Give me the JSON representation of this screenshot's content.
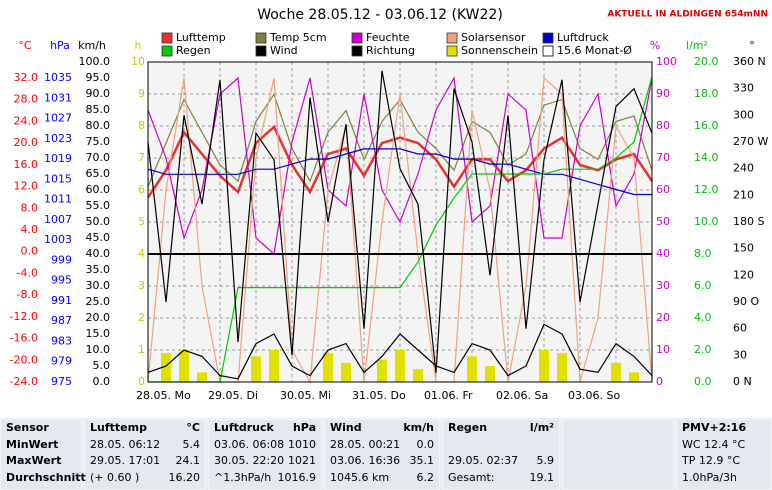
{
  "chart_data": {
    "type": "line",
    "title": "Woche 28.05.12 - 03.06.12 (KW22)",
    "station": "AKTUELL IN ALDINGEN 654mNN",
    "x": [
      0,
      6,
      12,
      18,
      24,
      30,
      36,
      42,
      48,
      54,
      60,
      66,
      72,
      78,
      84,
      90,
      96,
      102,
      108,
      114,
      120,
      126,
      132,
      138,
      144,
      150,
      156,
      162,
      168
    ],
    "xlim": [
      0,
      168
    ],
    "xticks": [
      {
        "value": 0,
        "label": "28.05. Mo"
      },
      {
        "value": 24,
        "label": "29.05. Di"
      },
      {
        "value": 48,
        "label": "30.05. Mi"
      },
      {
        "value": 72,
        "label": "31.05. Do"
      },
      {
        "value": 96,
        "label": "01.06. Fr"
      },
      {
        "value": 120,
        "label": "02.06. Sa"
      },
      {
        "value": 144,
        "label": "03.06. So"
      }
    ],
    "grid": true,
    "axes": [
      {
        "unit": "°C",
        "color": "#ff0000",
        "lim": [
          -24,
          32
        ],
        "ticks": [
          {
            "value": 32,
            "label": "32.0"
          },
          {
            "value": 28,
            "label": "28.0"
          },
          {
            "value": 24,
            "label": "24.0"
          },
          {
            "value": 20,
            "label": "20.0"
          },
          {
            "value": 16,
            "label": "16.0"
          },
          {
            "value": 12,
            "label": "12.0"
          },
          {
            "value": 8,
            "label": "8.0"
          },
          {
            "value": 4,
            "label": "4.0"
          },
          {
            "value": 0,
            "label": "0.0"
          },
          {
            "value": -4,
            "label": "-4.0"
          },
          {
            "value": -8,
            "label": "-8.0"
          },
          {
            "value": -12,
            "label": "-12.0"
          },
          {
            "value": -16,
            "label": "-16.0"
          },
          {
            "value": -20,
            "label": "-20.0"
          },
          {
            "value": -24,
            "label": "-24.0"
          }
        ]
      },
      {
        "unit": "hPa",
        "color": "#0000ff",
        "lim": [
          975,
          1035
        ],
        "ticks": [
          1035,
          1031,
          1027,
          1023,
          1019,
          1015,
          1011,
          1007,
          1003,
          999,
          995,
          991,
          987,
          983,
          979,
          975
        ]
      },
      {
        "unit": "km/h",
        "color": "#000000",
        "lim": [
          0,
          100
        ],
        "ticks": [
          {
            "value": 100,
            "label": "100.0"
          },
          {
            "value": 95,
            "label": "95.0"
          },
          {
            "value": 90,
            "label": "90.0"
          },
          {
            "value": 85,
            "label": "85.0"
          },
          {
            "value": 80,
            "label": "80.0"
          },
          {
            "value": 75,
            "label": "75.0"
          },
          {
            "value": 70,
            "label": "70.0"
          },
          {
            "value": 65,
            "label": "65.0"
          },
          {
            "value": 60,
            "label": "60.0"
          },
          {
            "value": 55,
            "label": "55.0"
          },
          {
            "value": 50,
            "label": "50.0"
          },
          {
            "value": 45,
            "label": "45.0"
          },
          {
            "value": 40,
            "label": "40.0"
          },
          {
            "value": 35,
            "label": "35.0"
          },
          {
            "value": 30,
            "label": "30.0"
          },
          {
            "value": 25,
            "label": "25.0"
          },
          {
            "value": 20,
            "label": "20.0"
          },
          {
            "value": 15,
            "label": "15.0"
          },
          {
            "value": 10,
            "label": "10.0"
          },
          {
            "value": 5,
            "label": "5.0"
          },
          {
            "value": 0,
            "label": "0.0"
          }
        ]
      },
      {
        "unit": "h",
        "color": "#c8c800",
        "lim": [
          0,
          10
        ],
        "ticks": [
          10,
          9,
          8,
          7,
          6,
          5,
          4,
          3,
          2,
          1,
          0
        ]
      },
      {
        "unit": "%",
        "color": "#cc00cc",
        "lim": [
          0,
          100
        ],
        "ticks": [
          100,
          90,
          80,
          70,
          60,
          50,
          40,
          30,
          20,
          10,
          0
        ]
      },
      {
        "unit": "l/m²",
        "color": "#00c000",
        "lim": [
          0,
          20
        ],
        "ticks": [
          {
            "value": 20,
            "label": "20.0"
          },
          {
            "value": 18,
            "label": "18.0"
          },
          {
            "value": 16,
            "label": "16.0"
          },
          {
            "value": 14,
            "label": "14.0"
          },
          {
            "value": 12,
            "label": "12.0"
          },
          {
            "value": 10,
            "label": "10.0"
          },
          {
            "value": 8,
            "label": "8.0"
          },
          {
            "value": 6,
            "label": "6.0"
          },
          {
            "value": 4,
            "label": "4.0"
          },
          {
            "value": 2,
            "label": "2.0"
          },
          {
            "value": 0,
            "label": "0.0"
          }
        ]
      },
      {
        "unit": "°",
        "color": "#000000",
        "lim": [
          0,
          360
        ],
        "ticks": [
          {
            "value": 360,
            "label": "360 N"
          },
          330,
          300,
          {
            "value": 270,
            "label": "270 W"
          },
          240,
          210,
          {
            "value": 180,
            "label": "180 S"
          },
          150,
          120,
          {
            "value": 90,
            "label": "90 O"
          },
          60,
          30,
          {
            "value": 0,
            "label": "0 N"
          }
        ]
      }
    ],
    "series": [
      {
        "name": "Lufttemp",
        "color": "#e8302c",
        "axis": 0,
        "values": [
          10,
          15,
          22,
          18,
          14,
          11,
          20,
          23,
          16,
          11,
          18,
          19,
          14,
          20,
          21,
          20,
          17,
          12,
          17,
          17,
          13,
          15,
          19,
          21,
          16,
          15,
          17,
          18,
          13
        ]
      },
      {
        "name": "Temp 5cm",
        "color": "#808040",
        "axis": 0,
        "values": [
          12,
          20,
          28,
          22,
          16,
          13,
          24,
          29,
          19,
          13,
          22,
          26,
          17,
          24,
          28,
          22,
          19,
          15,
          24,
          22,
          16,
          18,
          27,
          28,
          19,
          17,
          24,
          25,
          15
        ]
      },
      {
        "name": "Feuchte",
        "color": "#cc00cc",
        "axis": 4,
        "values": [
          85,
          70,
          45,
          60,
          90,
          95,
          45,
          40,
          75,
          95,
          60,
          55,
          90,
          60,
          50,
          65,
          85,
          95,
          50,
          55,
          90,
          85,
          45,
          45,
          80,
          90,
          55,
          65,
          95
        ]
      },
      {
        "name": "Solarsensor",
        "color": "#f4a080",
        "axis": 2,
        "values": [
          0,
          60,
          95,
          30,
          0,
          0,
          70,
          95,
          10,
          0,
          60,
          80,
          0,
          50,
          90,
          40,
          0,
          0,
          85,
          60,
          0,
          30,
          95,
          90,
          0,
          20,
          80,
          70,
          0
        ]
      },
      {
        "name": "Luftdruck",
        "color": "#0000cc",
        "axis": 1,
        "values": [
          1017,
          1016,
          1016,
          1016,
          1016,
          1016,
          1017,
          1017,
          1018,
          1019,
          1019,
          1020,
          1021,
          1021,
          1021,
          1020,
          1020,
          1019,
          1019,
          1018,
          1018,
          1017,
          1016,
          1016,
          1015,
          1014,
          1013,
          1012,
          1012
        ]
      },
      {
        "name": "Regen",
        "color": "#00cc00",
        "axis": 5,
        "values": [
          0,
          0,
          0,
          0,
          0,
          5.9,
          5.9,
          5.9,
          5.9,
          5.9,
          5.9,
          5.9,
          5.9,
          5.9,
          5.9,
          7.5,
          9.8,
          11.5,
          13,
          13,
          13,
          13,
          13,
          13.3,
          13.3,
          13.3,
          14,
          15,
          19.1
        ]
      },
      {
        "name": "Wind",
        "color": "#000000",
        "axis": 2,
        "values": [
          3,
          5,
          10,
          8,
          2,
          1,
          12,
          15,
          5,
          2,
          10,
          12,
          3,
          8,
          15,
          10,
          5,
          3,
          12,
          10,
          2,
          5,
          18,
          15,
          4,
          3,
          12,
          8,
          2
        ]
      },
      {
        "name": "Richtung",
        "color": "#000000",
        "axis": 6,
        "values": [
          270,
          90,
          300,
          200,
          340,
          45,
          280,
          250,
          30,
          320,
          180,
          290,
          60,
          350,
          240,
          200,
          10,
          330,
          270,
          120,
          300,
          60,
          250,
          340,
          90,
          200,
          310,
          330,
          280
        ]
      },
      {
        "name": "Sonnenschein",
        "color": "#e0e000",
        "axis": 3,
        "type": "bar",
        "values": [
          0,
          0.9,
          1.0,
          0.3,
          0,
          0,
          0.8,
          1.0,
          0,
          0,
          0.9,
          0.6,
          0,
          0.7,
          1.0,
          0.4,
          0,
          0,
          0.8,
          0.5,
          0,
          0,
          1.0,
          0.9,
          0,
          0,
          0.6,
          0.3,
          0
        ]
      }
    ],
    "monthly_average": "15.6 Monat-Ø"
  },
  "table": {
    "sensor": {
      "header": "Sensor",
      "rows": [
        "MinWert",
        "MaxWert",
        "Durchschnitt"
      ]
    },
    "columns": [
      {
        "header": "Lufttemp",
        "unit": "°C",
        "rows": [
          [
            "28.05.  06:12",
            "5.4"
          ],
          [
            "29.05.  17:01",
            "24.1"
          ],
          [
            "(+ 0.60 )",
            "16.20"
          ]
        ]
      },
      {
        "header": "Luftdruck",
        "unit": "hPa",
        "rows": [
          [
            "03.06.  06:08",
            "1010"
          ],
          [
            "30.05.  22:20",
            "1021"
          ],
          [
            "^1.3hPa/h",
            "1016.9"
          ]
        ]
      },
      {
        "header": "Wind",
        "unit": "km/h",
        "rows": [
          [
            "28.05.  00:21",
            "0.0"
          ],
          [
            "03.06.  16:36",
            "35.1"
          ],
          [
            "1045.6 km",
            "6.2"
          ]
        ]
      },
      {
        "header": "Regen",
        "unit": "l/m²",
        "rows": [
          null,
          [
            "29.05.  02:37",
            "5.9"
          ],
          [
            "Gesamt:",
            "19.1"
          ]
        ]
      }
    ],
    "extra": {
      "header": "PMV+2:16",
      "rows": [
        "WC 12.4 °C",
        "TP 12.9 °C",
        "1.0hPa/3h"
      ]
    }
  }
}
